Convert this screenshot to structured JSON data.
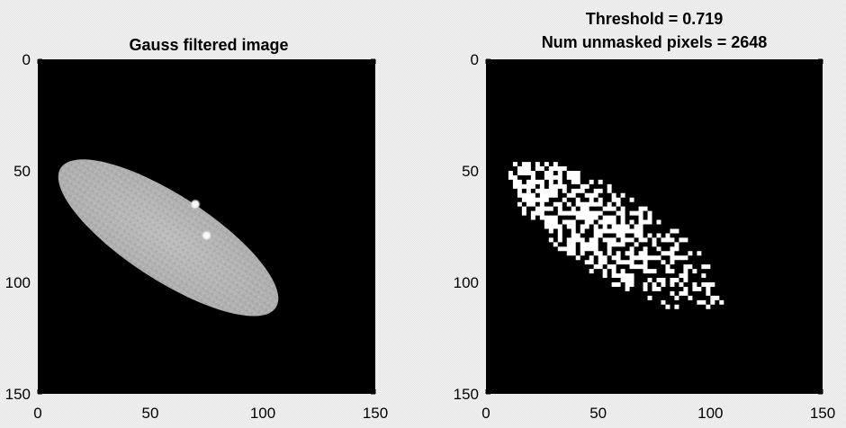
{
  "chart_data": [
    {
      "type": "heatmap",
      "title_lines": [
        "Gauss filtered image"
      ],
      "xlabel": "",
      "ylabel": "",
      "xlim": [
        0,
        150
      ],
      "ylim": [
        0,
        150
      ],
      "y_direction": "reversed",
      "x_ticks": [
        0,
        50,
        100,
        150
      ],
      "y_ticks": [
        0,
        50,
        100,
        150
      ],
      "grid": false,
      "colormap": "gray",
      "background_value": 0,
      "ellipse": {
        "center": [
          58,
          80
        ],
        "semi_major": 57,
        "semi_minor": 19,
        "rotation_deg": 33,
        "mean_intensity": 0.72
      },
      "bright_spots": [
        {
          "x": 70,
          "y": 65
        },
        {
          "x": 75,
          "y": 79
        }
      ]
    },
    {
      "type": "heatmap",
      "title_lines": [
        "Threshold = 0.719",
        "Num unmasked pixels = 2648"
      ],
      "threshold": 0.719,
      "num_unmasked_pixels": 2648,
      "xlabel": "",
      "ylabel": "",
      "xlim": [
        0,
        150
      ],
      "ylim": [
        0,
        150
      ],
      "y_direction": "reversed",
      "x_ticks": [
        0,
        50,
        100,
        150
      ],
      "y_ticks": [
        0,
        50,
        100,
        150
      ],
      "grid": false,
      "colormap": "binary mask (white = unmasked)",
      "background_value": 0
    }
  ]
}
